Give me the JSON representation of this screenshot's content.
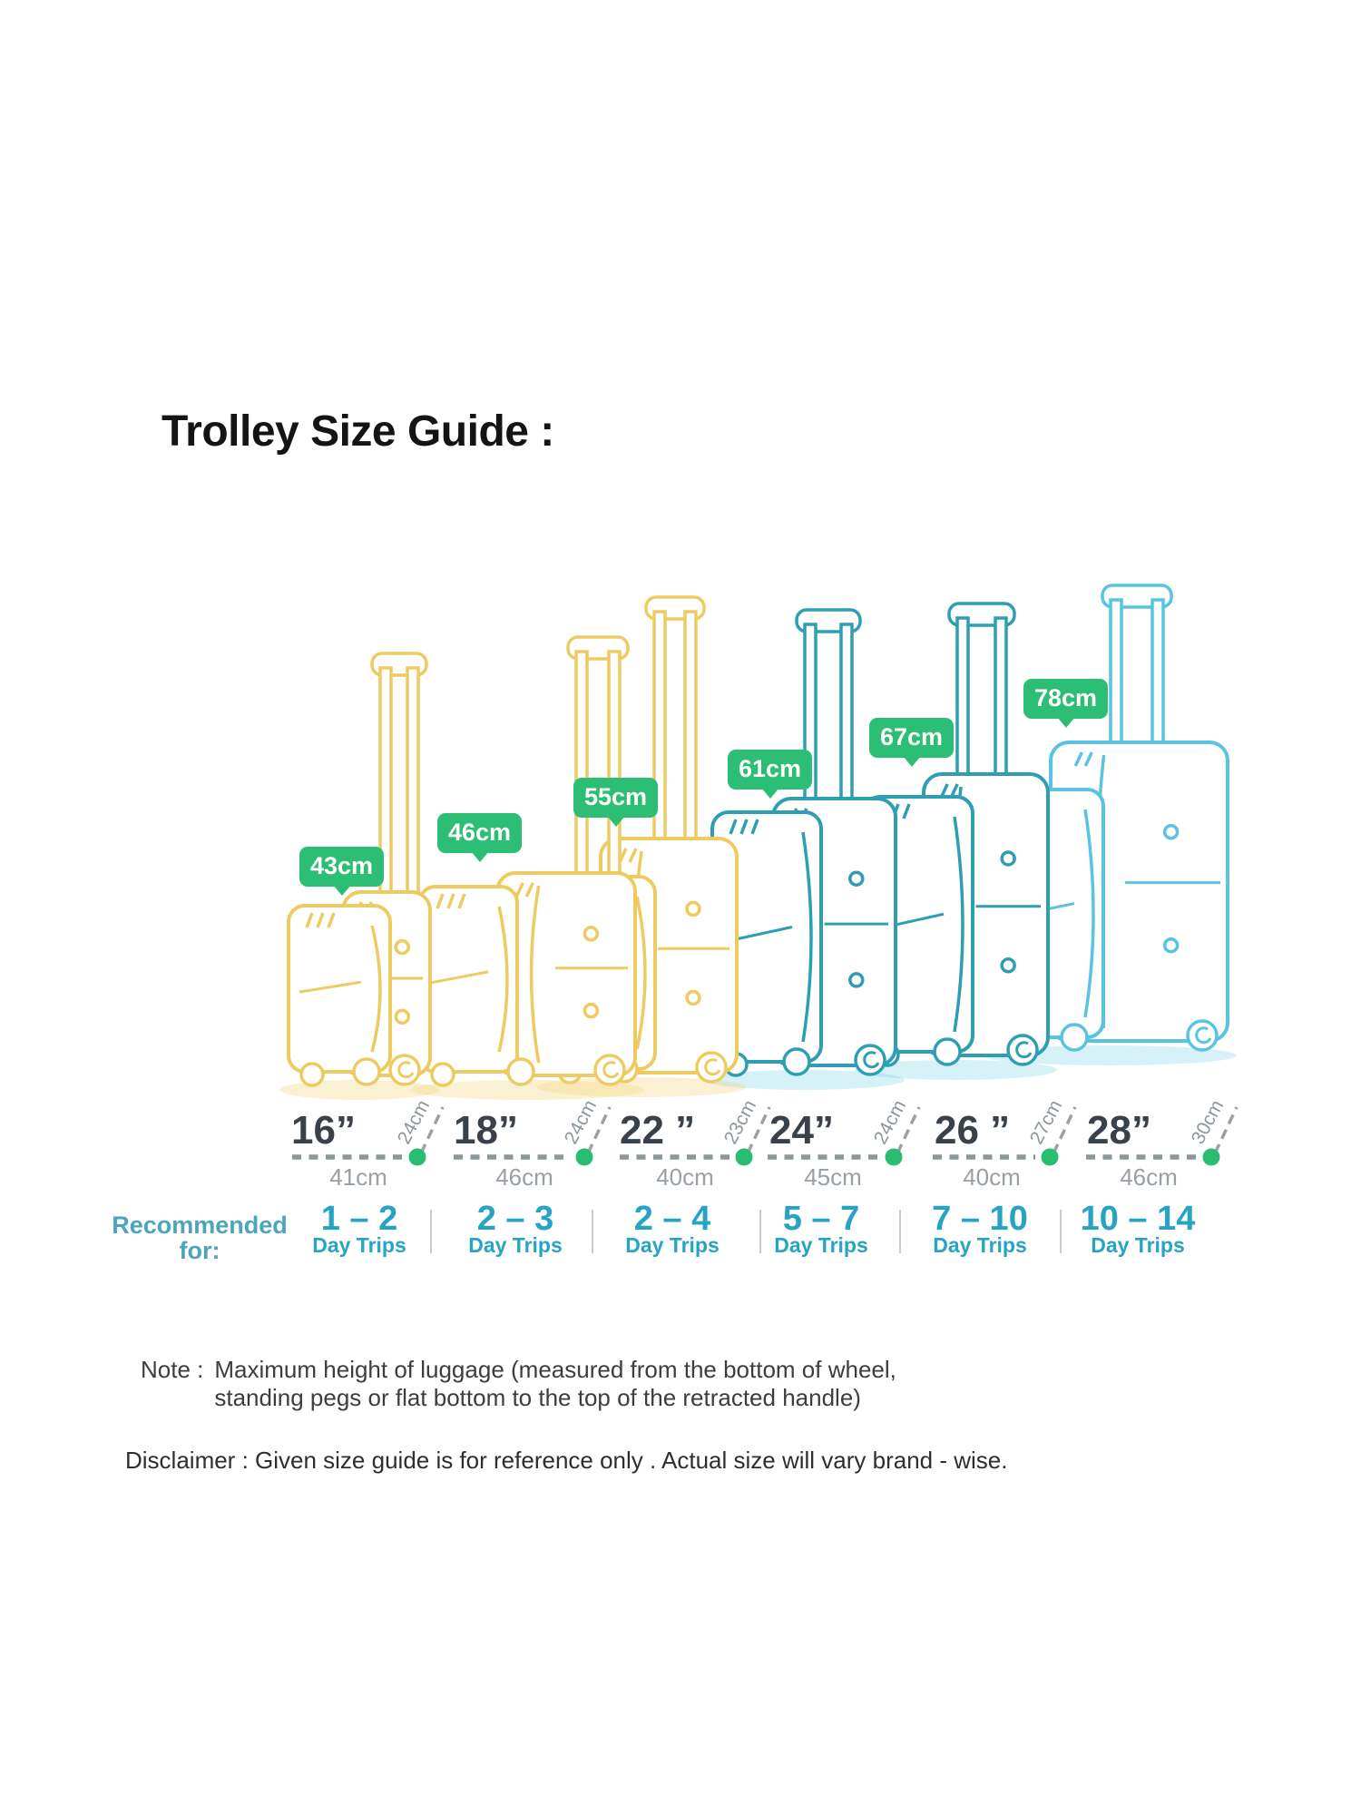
{
  "title": "Trolley Size Guide :",
  "recommended": {
    "line1": "Recommended",
    "line2": "for:"
  },
  "sizes": [
    {
      "inches": "16”",
      "height": "43cm",
      "width": "41cm",
      "depth": "24cm",
      "trips": "1 – 2",
      "trips_unit": "Day Trips"
    },
    {
      "inches": "18”",
      "height": "46cm",
      "width": "46cm",
      "depth": "24cm",
      "trips": "2 – 3",
      "trips_unit": "Day Trips"
    },
    {
      "inches": "22 ”",
      "height": "55cm",
      "width": "40cm",
      "depth": "23cm",
      "trips": "2 – 4",
      "trips_unit": "Day Trips"
    },
    {
      "inches": "24”",
      "height": "61cm",
      "width": "45cm",
      "depth": "24cm",
      "trips": "5 – 7",
      "trips_unit": "Day Trips"
    },
    {
      "inches": "26 ”",
      "height": "67cm",
      "width": "40cm",
      "depth": "27cm",
      "trips": "7 – 10",
      "trips_unit": "Day Trips"
    },
    {
      "inches": "28”",
      "height": "78cm",
      "width": "46cm",
      "depth": "30cm",
      "trips": "10 – 14",
      "trips_unit": "Day Trips"
    }
  ],
  "note": {
    "label": "Note :",
    "line1": "Maximum height of luggage (measured from the bottom of wheel,",
    "line2": "standing pegs or flat bottom to the top of the retracted handle)"
  },
  "disclaimer": "Disclaimer : Given size guide is for reference only . Actual size will vary brand - wise.",
  "colors": {
    "title_text": "#141414",
    "badge_green": "#2CBE74",
    "badge_text": "#FFFFFF",
    "dot_green": "#29BD72",
    "luggage_yellow": "#EDCB61",
    "luggage_teal": "#2E9FB2",
    "luggage_cyan": "#58C4E1",
    "shadow_yellow": "rgba(240,214,130,0.35)",
    "shadow_cyan": "rgba(130,212,235,0.33)",
    "dash_line": "#8A979B",
    "diag_line": "#98A2A6",
    "divider": "#C7CBCE",
    "size_label": "#39424B",
    "width_label": "#98A0A6",
    "depth_label": "#8C979B",
    "trips_text": "#27A3C4",
    "recommended_text": "#4BA6BC",
    "note_text": "#3D3D3D",
    "disclaimer_text": "#2E2E2E"
  }
}
